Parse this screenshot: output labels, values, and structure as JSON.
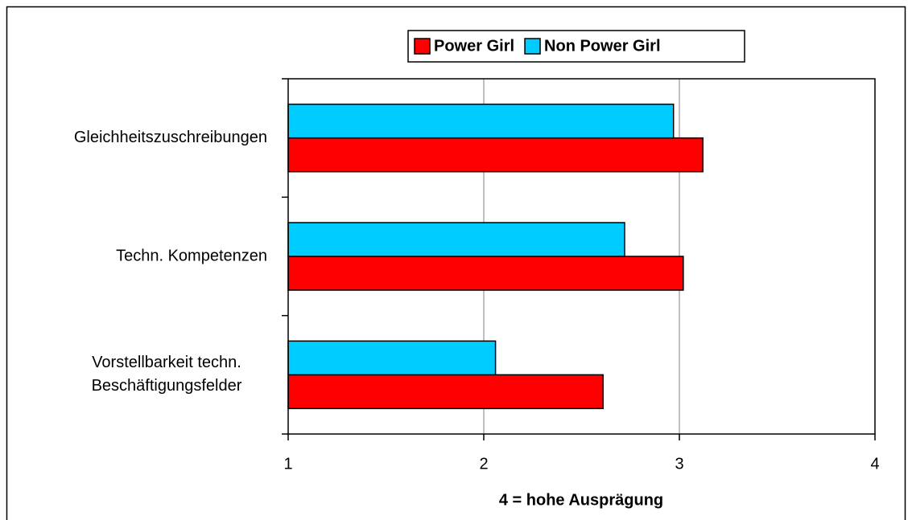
{
  "chart_data": {
    "type": "barh",
    "categories": [
      "Gleichheitszuschreibungen",
      "Techn. Kompetenzen",
      "Vorstellbarkeit techn.\nBeschäftigungsfelder"
    ],
    "series": [
      {
        "name": "Power Girl",
        "color": "#ff0000",
        "values": [
          3.12,
          3.02,
          2.61
        ]
      },
      {
        "name": "Non Power Girl",
        "color": "#00ccff",
        "values": [
          2.97,
          2.72,
          2.06
        ]
      }
    ],
    "xlim": [
      1,
      4
    ],
    "xticks": [
      1,
      2,
      3,
      4
    ],
    "grid": true,
    "xlabel": "4 = hohe Ausprägung",
    "legend": "top"
  }
}
